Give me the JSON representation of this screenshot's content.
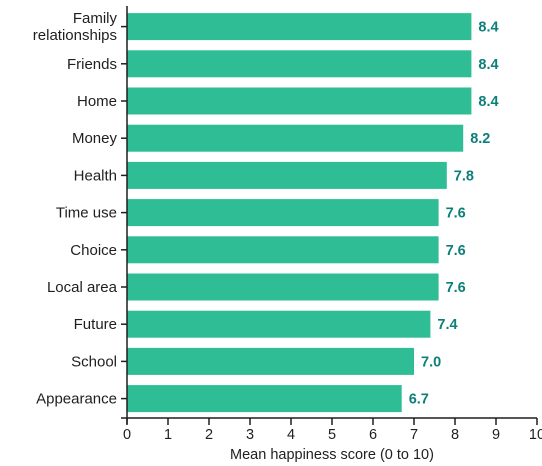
{
  "chart_data": {
    "type": "bar",
    "orientation": "horizontal",
    "categories": [
      [
        "Family",
        "relationships"
      ],
      [
        "Friends"
      ],
      [
        "Home"
      ],
      [
        "Money"
      ],
      [
        "Health"
      ],
      [
        "Time use"
      ],
      [
        "Choice"
      ],
      [
        "Local area"
      ],
      [
        "Future"
      ],
      [
        "School"
      ],
      [
        "Appearance"
      ]
    ],
    "values": [
      8.4,
      8.4,
      8.4,
      8.2,
      7.8,
      7.6,
      7.6,
      7.6,
      7.4,
      7.0,
      6.7
    ],
    "value_labels": [
      "8.4",
      "8.4",
      "8.4",
      "8.2",
      "7.8",
      "7.6",
      "7.6",
      "7.6",
      "7.4",
      "7.0",
      "6.7"
    ],
    "xlabel": "Mean happiness score (0 to 10)",
    "ylabel": "",
    "xlim": [
      0,
      10
    ],
    "xticks": [
      "0",
      "1",
      "2",
      "3",
      "4",
      "5",
      "6",
      "7",
      "8",
      "9",
      "10"
    ],
    "grid": false,
    "legend": "none",
    "colors": {
      "bar": "#2ebd94",
      "value_label": "#0d7f7a",
      "axis": "#1f1f1f"
    }
  }
}
